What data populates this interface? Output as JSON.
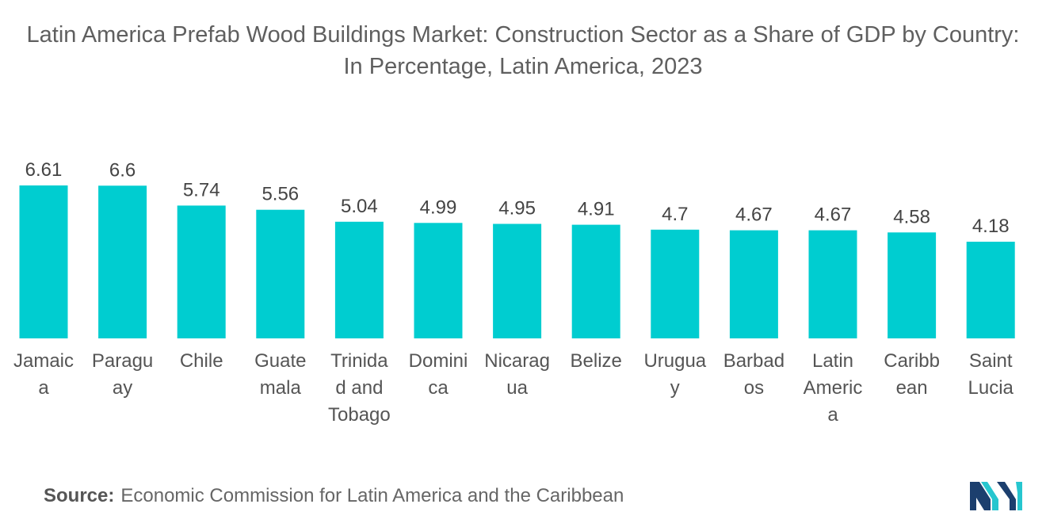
{
  "title": "Latin America Prefab Wood Buildings Market: Construction Sector as a Share of GDP by Country: In Percentage, Latin America, 2023",
  "source_label": "Source:",
  "source_text": "Economic Commission for Latin America and the Caribbean",
  "logo_icon": "mordor-intelligence-logo-icon",
  "colors": {
    "bar": "#00cdd0",
    "logo_dark": "#1c3f6e",
    "logo_light": "#26c6cf"
  },
  "chart_data": {
    "type": "bar",
    "categories": [
      "Jamaica",
      "Paraguay",
      "Chile",
      "Guatemala",
      "Trinidad and Tobago",
      "Dominica",
      "Nicaragua",
      "Belize",
      "Uruguay",
      "Barbados",
      "Latin America",
      "Caribbean",
      "Saint Lucia"
    ],
    "category_label_lines": [
      [
        "Jamaic",
        "a"
      ],
      [
        "Paragu",
        "ay"
      ],
      [
        "Chile"
      ],
      [
        "Guate",
        "mala"
      ],
      [
        "Trinida",
        "d and",
        "Tobago"
      ],
      [
        "Domini",
        "ca"
      ],
      [
        "Nicarag",
        "ua"
      ],
      [
        "Belize"
      ],
      [
        "Urugua",
        "y"
      ],
      [
        "Barbad",
        "os"
      ],
      [
        "Latin",
        "Americ",
        "a"
      ],
      [
        "Caribb",
        "ean"
      ],
      [
        "Saint",
        "Lucia"
      ]
    ],
    "values": [
      6.61,
      6.6,
      5.74,
      5.56,
      5.04,
      4.99,
      4.95,
      4.91,
      4.7,
      4.67,
      4.67,
      4.58,
      4.18
    ],
    "value_labels": [
      "6.61",
      "6.6",
      "5.74",
      "5.56",
      "5.04",
      "4.99",
      "4.95",
      "4.91",
      "4.7",
      "4.67",
      "4.67",
      "4.58",
      "4.18"
    ],
    "xlabel": "",
    "ylabel": "",
    "ylim": [
      0,
      6.61
    ],
    "grid": false,
    "legend": "none"
  }
}
